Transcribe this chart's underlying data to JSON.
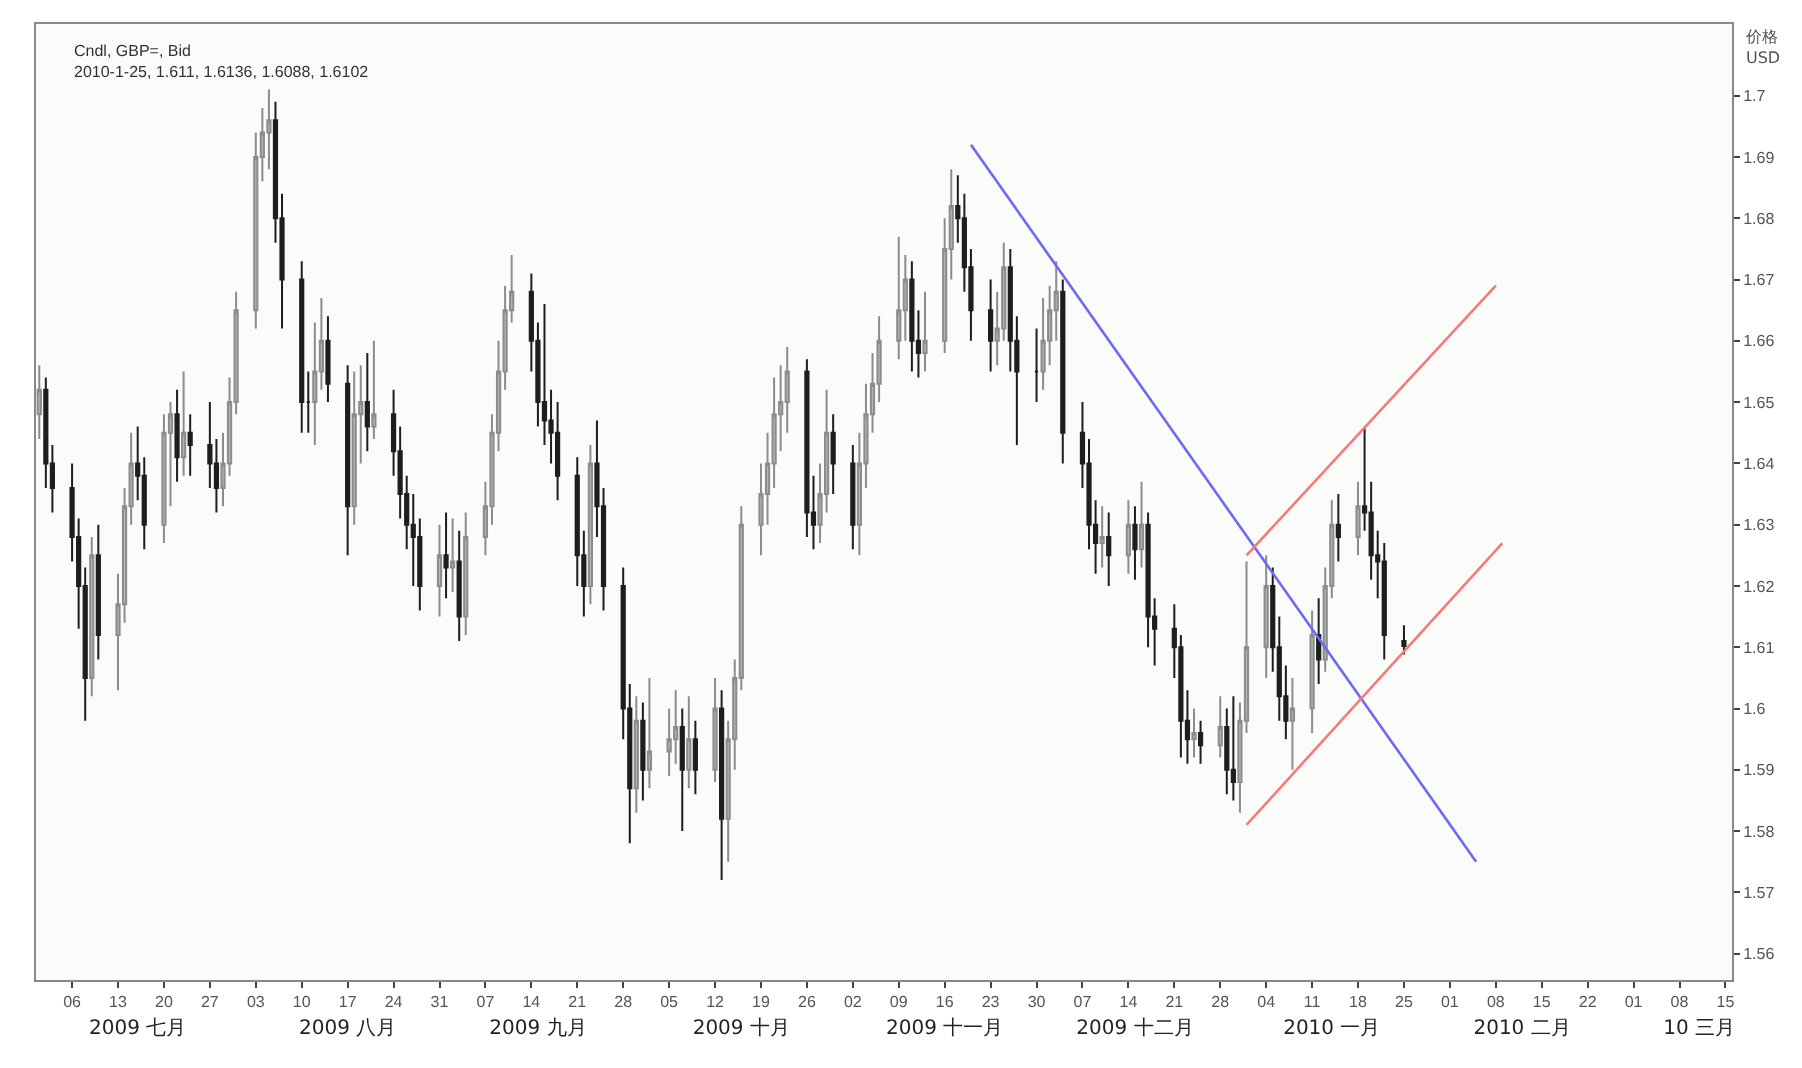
{
  "chart_data": {
    "type": "candlestick",
    "title": "Cndl, GBP=, Bid",
    "subtitle": "2010-1-25, 1.611, 1.6136, 1.6088, 1.6102",
    "ylabel": "价格\nUSD",
    "x": [
      "2009-07-01",
      "2009-07-02",
      "2009-07-03",
      "2009-07-06",
      "2009-07-07",
      "2009-07-08",
      "2009-07-09",
      "2009-07-10",
      "2009-07-13",
      "2009-07-14",
      "2009-07-15",
      "2009-07-16",
      "2009-07-17",
      "2009-07-20",
      "2009-07-21",
      "2009-07-22",
      "2009-07-23",
      "2009-07-24",
      "2009-07-27",
      "2009-07-28",
      "2009-07-29",
      "2009-07-30",
      "2009-07-31",
      "2009-08-03",
      "2009-08-04",
      "2009-08-05",
      "2009-08-06",
      "2009-08-07",
      "2009-08-10",
      "2009-08-11",
      "2009-08-12",
      "2009-08-13",
      "2009-08-14",
      "2009-08-17",
      "2009-08-18",
      "2009-08-19",
      "2009-08-20",
      "2009-08-21",
      "2009-08-24",
      "2009-08-25",
      "2009-08-26",
      "2009-08-27",
      "2009-08-28",
      "2009-08-31",
      "2009-09-01",
      "2009-09-02",
      "2009-09-03",
      "2009-09-04",
      "2009-09-07",
      "2009-09-08",
      "2009-09-09",
      "2009-09-10",
      "2009-09-11",
      "2009-09-14",
      "2009-09-15",
      "2009-09-16",
      "2009-09-17",
      "2009-09-18",
      "2009-09-21",
      "2009-09-22",
      "2009-09-23",
      "2009-09-24",
      "2009-09-25",
      "2009-09-28",
      "2009-09-29",
      "2009-09-30",
      "2009-10-01",
      "2009-10-02",
      "2009-10-05",
      "2009-10-06",
      "2009-10-07",
      "2009-10-08",
      "2009-10-09",
      "2009-10-12",
      "2009-10-13",
      "2009-10-14",
      "2009-10-15",
      "2009-10-16",
      "2009-10-19",
      "2009-10-20",
      "2009-10-21",
      "2009-10-22",
      "2009-10-23",
      "2009-10-26",
      "2009-10-27",
      "2009-10-28",
      "2009-10-29",
      "2009-10-30",
      "2009-11-02",
      "2009-11-03",
      "2009-11-04",
      "2009-11-05",
      "2009-11-06",
      "2009-11-09",
      "2009-11-10",
      "2009-11-11",
      "2009-11-12",
      "2009-11-13",
      "2009-11-16",
      "2009-11-17",
      "2009-11-18",
      "2009-11-19",
      "2009-11-20",
      "2009-11-23",
      "2009-11-24",
      "2009-11-25",
      "2009-11-26",
      "2009-11-27",
      "2009-11-30",
      "2009-12-01",
      "2009-12-02",
      "2009-12-03",
      "2009-12-04",
      "2009-12-07",
      "2009-12-08",
      "2009-12-09",
      "2009-12-10",
      "2009-12-11",
      "2009-12-14",
      "2009-12-15",
      "2009-12-16",
      "2009-12-17",
      "2009-12-18",
      "2009-12-21",
      "2009-12-22",
      "2009-12-23",
      "2009-12-24",
      "2009-12-25",
      "2009-12-28",
      "2009-12-29",
      "2009-12-30",
      "2009-12-31",
      "2010-01-01",
      "2010-01-04",
      "2010-01-05",
      "2010-01-06",
      "2010-01-07",
      "2010-01-08",
      "2010-01-11",
      "2010-01-12",
      "2010-01-13",
      "2010-01-14",
      "2010-01-15",
      "2010-01-18",
      "2010-01-19",
      "2010-01-20",
      "2010-01-21",
      "2010-01-22",
      "2010-01-25"
    ],
    "ohlc": [
      [
        1.648,
        1.656,
        1.644,
        1.652
      ],
      [
        1.652,
        1.654,
        1.636,
        1.64
      ],
      [
        1.64,
        1.643,
        1.632,
        1.636
      ],
      [
        1.636,
        1.64,
        1.624,
        1.628
      ],
      [
        1.628,
        1.631,
        1.613,
        1.62
      ],
      [
        1.62,
        1.623,
        1.598,
        1.605
      ],
      [
        1.605,
        1.628,
        1.602,
        1.625
      ],
      [
        1.625,
        1.63,
        1.608,
        1.612
      ],
      [
        1.612,
        1.622,
        1.603,
        1.617
      ],
      [
        1.617,
        1.636,
        1.614,
        1.633
      ],
      [
        1.633,
        1.645,
        1.63,
        1.64
      ],
      [
        1.64,
        1.646,
        1.634,
        1.638
      ],
      [
        1.638,
        1.641,
        1.626,
        1.63
      ],
      [
        1.63,
        1.648,
        1.627,
        1.645
      ],
      [
        1.645,
        1.65,
        1.633,
        1.648
      ],
      [
        1.648,
        1.652,
        1.637,
        1.641
      ],
      [
        1.641,
        1.655,
        1.638,
        1.645
      ],
      [
        1.645,
        1.648,
        1.638,
        1.643
      ],
      [
        1.643,
        1.65,
        1.636,
        1.64
      ],
      [
        1.64,
        1.644,
        1.632,
        1.636
      ],
      [
        1.636,
        1.645,
        1.633,
        1.64
      ],
      [
        1.64,
        1.654,
        1.638,
        1.65
      ],
      [
        1.65,
        1.668,
        1.648,
        1.665
      ],
      [
        1.665,
        1.694,
        1.662,
        1.69
      ],
      [
        1.69,
        1.698,
        1.686,
        1.694
      ],
      [
        1.694,
        1.701,
        1.688,
        1.696
      ],
      [
        1.696,
        1.699,
        1.676,
        1.68
      ],
      [
        1.68,
        1.684,
        1.662,
        1.67
      ],
      [
        1.67,
        1.673,
        1.645,
        1.65
      ],
      [
        1.65,
        1.655,
        1.645,
        1.65
      ],
      [
        1.65,
        1.663,
        1.643,
        1.655
      ],
      [
        1.655,
        1.667,
        1.652,
        1.66
      ],
      [
        1.66,
        1.664,
        1.65,
        1.653
      ],
      [
        1.653,
        1.656,
        1.625,
        1.633
      ],
      [
        1.633,
        1.655,
        1.63,
        1.648
      ],
      [
        1.648,
        1.656,
        1.64,
        1.65
      ],
      [
        1.65,
        1.658,
        1.642,
        1.646
      ],
      [
        1.646,
        1.66,
        1.644,
        1.648
      ],
      [
        1.648,
        1.652,
        1.638,
        1.642
      ],
      [
        1.642,
        1.646,
        1.631,
        1.635
      ],
      [
        1.635,
        1.638,
        1.626,
        1.63
      ],
      [
        1.63,
        1.635,
        1.62,
        1.628
      ],
      [
        1.628,
        1.631,
        1.616,
        1.62
      ],
      [
        1.62,
        1.63,
        1.615,
        1.625
      ],
      [
        1.625,
        1.632,
        1.618,
        1.623
      ],
      [
        1.623,
        1.631,
        1.619,
        1.624
      ],
      [
        1.624,
        1.629,
        1.611,
        1.615
      ],
      [
        1.615,
        1.632,
        1.612,
        1.628
      ],
      [
        1.628,
        1.637,
        1.625,
        1.633
      ],
      [
        1.633,
        1.648,
        1.63,
        1.645
      ],
      [
        1.645,
        1.66,
        1.642,
        1.655
      ],
      [
        1.655,
        1.669,
        1.652,
        1.665
      ],
      [
        1.665,
        1.674,
        1.663,
        1.668
      ],
      [
        1.668,
        1.671,
        1.655,
        1.66
      ],
      [
        1.66,
        1.663,
        1.646,
        1.65
      ],
      [
        1.65,
        1.666,
        1.643,
        1.647
      ],
      [
        1.647,
        1.652,
        1.64,
        1.645
      ],
      [
        1.645,
        1.65,
        1.634,
        1.638
      ],
      [
        1.638,
        1.641,
        1.62,
        1.625
      ],
      [
        1.625,
        1.629,
        1.615,
        1.62
      ],
      [
        1.62,
        1.643,
        1.617,
        1.64
      ],
      [
        1.64,
        1.647,
        1.628,
        1.633
      ],
      [
        1.633,
        1.636,
        1.616,
        1.62
      ],
      [
        1.62,
        1.623,
        1.595,
        1.6
      ],
      [
        1.6,
        1.604,
        1.578,
        1.587
      ],
      [
        1.587,
        1.602,
        1.583,
        1.598
      ],
      [
        1.598,
        1.601,
        1.585,
        1.59
      ],
      [
        1.59,
        1.605,
        1.587,
        1.593
      ],
      [
        1.593,
        1.6,
        1.589,
        1.595
      ],
      [
        1.595,
        1.603,
        1.591,
        1.597
      ],
      [
        1.597,
        1.6,
        1.58,
        1.59
      ],
      [
        1.59,
        1.602,
        1.587,
        1.595
      ],
      [
        1.595,
        1.598,
        1.586,
        1.59
      ],
      [
        1.59,
        1.605,
        1.588,
        1.6
      ],
      [
        1.6,
        1.603,
        1.572,
        1.582
      ],
      [
        1.582,
        1.598,
        1.575,
        1.595
      ],
      [
        1.595,
        1.608,
        1.59,
        1.605
      ],
      [
        1.605,
        1.633,
        1.603,
        1.63
      ],
      [
        1.63,
        1.64,
        1.625,
        1.635
      ],
      [
        1.635,
        1.645,
        1.63,
        1.64
      ],
      [
        1.64,
        1.654,
        1.636,
        1.648
      ],
      [
        1.648,
        1.656,
        1.642,
        1.65
      ],
      [
        1.65,
        1.659,
        1.645,
        1.655
      ],
      [
        1.655,
        1.657,
        1.628,
        1.632
      ],
      [
        1.632,
        1.638,
        1.626,
        1.63
      ],
      [
        1.63,
        1.64,
        1.627,
        1.635
      ],
      [
        1.635,
        1.652,
        1.632,
        1.645
      ],
      [
        1.645,
        1.648,
        1.635,
        1.64
      ],
      [
        1.64,
        1.643,
        1.626,
        1.63
      ],
      [
        1.63,
        1.645,
        1.625,
        1.64
      ],
      [
        1.64,
        1.653,
        1.636,
        1.648
      ],
      [
        1.648,
        1.658,
        1.645,
        1.653
      ],
      [
        1.653,
        1.664,
        1.65,
        1.66
      ],
      [
        1.66,
        1.677,
        1.657,
        1.665
      ],
      [
        1.665,
        1.674,
        1.66,
        1.67
      ],
      [
        1.67,
        1.673,
        1.655,
        1.66
      ],
      [
        1.66,
        1.665,
        1.654,
        1.658
      ],
      [
        1.658,
        1.668,
        1.655,
        1.66
      ],
      [
        1.66,
        1.68,
        1.658,
        1.675
      ],
      [
        1.675,
        1.688,
        1.67,
        1.682
      ],
      [
        1.682,
        1.687,
        1.676,
        1.68
      ],
      [
        1.68,
        1.684,
        1.668,
        1.672
      ],
      [
        1.672,
        1.675,
        1.66,
        1.665
      ],
      [
        1.665,
        1.67,
        1.655,
        1.66
      ],
      [
        1.66,
        1.668,
        1.656,
        1.662
      ],
      [
        1.662,
        1.676,
        1.66,
        1.672
      ],
      [
        1.672,
        1.675,
        1.655,
        1.66
      ],
      [
        1.66,
        1.664,
        1.643,
        1.655
      ],
      [
        1.655,
        1.662,
        1.65,
        1.655
      ],
      [
        1.655,
        1.667,
        1.652,
        1.66
      ],
      [
        1.66,
        1.669,
        1.656,
        1.665
      ],
      [
        1.665,
        1.673,
        1.66,
        1.668
      ],
      [
        1.668,
        1.67,
        1.64,
        1.645
      ],
      [
        1.645,
        1.65,
        1.636,
        1.64
      ],
      [
        1.64,
        1.644,
        1.626,
        1.63
      ],
      [
        1.63,
        1.634,
        1.622,
        1.627
      ],
      [
        1.627,
        1.633,
        1.623,
        1.628
      ],
      [
        1.628,
        1.632,
        1.62,
        1.625
      ],
      [
        1.625,
        1.634,
        1.622,
        1.63
      ],
      [
        1.63,
        1.633,
        1.621,
        1.626
      ],
      [
        1.626,
        1.637,
        1.623,
        1.63
      ],
      [
        1.63,
        1.632,
        1.61,
        1.615
      ],
      [
        1.615,
        1.618,
        1.607,
        1.613
      ],
      [
        1.613,
        1.617,
        1.605,
        1.61
      ],
      [
        1.61,
        1.612,
        1.592,
        1.598
      ],
      [
        1.598,
        1.603,
        1.591,
        1.595
      ],
      [
        1.595,
        1.6,
        1.592,
        1.596
      ],
      [
        1.596,
        1.598,
        1.591,
        1.594
      ],
      [
        1.594,
        1.602,
        1.592,
        1.597
      ],
      [
        1.597,
        1.6,
        1.586,
        1.59
      ],
      [
        1.59,
        1.602,
        1.585,
        1.588
      ],
      [
        1.588,
        1.601,
        1.583,
        1.598
      ],
      [
        1.598,
        1.624,
        1.596,
        1.61
      ],
      [
        1.61,
        1.625,
        1.605,
        1.62
      ],
      [
        1.62,
        1.623,
        1.606,
        1.61
      ],
      [
        1.61,
        1.615,
        1.598,
        1.602
      ],
      [
        1.602,
        1.607,
        1.595,
        1.598
      ],
      [
        1.598,
        1.605,
        1.59,
        1.6
      ],
      [
        1.6,
        1.616,
        1.596,
        1.612
      ],
      [
        1.612,
        1.618,
        1.604,
        1.608
      ],
      [
        1.608,
        1.623,
        1.606,
        1.62
      ],
      [
        1.62,
        1.634,
        1.618,
        1.63
      ],
      [
        1.63,
        1.635,
        1.624,
        1.628
      ],
      [
        1.628,
        1.637,
        1.625,
        1.633
      ],
      [
        1.633,
        1.646,
        1.629,
        1.632
      ],
      [
        1.632,
        1.637,
        1.621,
        1.625
      ],
      [
        1.625,
        1.629,
        1.618,
        1.624
      ],
      [
        1.624,
        1.627,
        1.608,
        1.612
      ],
      [
        1.611,
        1.6136,
        1.6088,
        1.6102
      ]
    ],
    "series": [
      {
        "type": "line",
        "color": "#6a6af5",
        "x": [
          "2009-11-20",
          "2010-02-05"
        ],
        "values": [
          1.692,
          1.575
        ]
      },
      {
        "type": "line",
        "color": "#f57a7a",
        "x": [
          "2010-01-01",
          "2010-02-08"
        ],
        "values": [
          1.625,
          1.669
        ]
      },
      {
        "type": "line",
        "color": "#f57a7a",
        "x": [
          "2010-01-01",
          "2010-02-09"
        ],
        "values": [
          1.581,
          1.627
        ]
      }
    ],
    "xlim": [
      "2009-06-30T12:00",
      "2010-03-16"
    ],
    "xticks": [
      {
        "value": "2009-07-06",
        "label": "06"
      },
      {
        "value": "2009-07-13",
        "label": "13"
      },
      {
        "value": "2009-07-20",
        "label": "20"
      },
      {
        "value": "2009-07-27",
        "label": "27"
      },
      {
        "value": "2009-08-03",
        "label": "03"
      },
      {
        "value": "2009-08-10",
        "label": "10"
      },
      {
        "value": "2009-08-17",
        "label": "17"
      },
      {
        "value": "2009-08-24",
        "label": "24"
      },
      {
        "value": "2009-08-31",
        "label": "31"
      },
      {
        "value": "2009-09-07",
        "label": "07"
      },
      {
        "value": "2009-09-14",
        "label": "14"
      },
      {
        "value": "2009-09-21",
        "label": "21"
      },
      {
        "value": "2009-09-28",
        "label": "28"
      },
      {
        "value": "2009-10-05",
        "label": "05"
      },
      {
        "value": "2009-10-12",
        "label": "12"
      },
      {
        "value": "2009-10-19",
        "label": "19"
      },
      {
        "value": "2009-10-26",
        "label": "26"
      },
      {
        "value": "2009-11-02",
        "label": "02"
      },
      {
        "value": "2009-11-09",
        "label": "09"
      },
      {
        "value": "2009-11-16",
        "label": "16"
      },
      {
        "value": "2009-11-23",
        "label": "23"
      },
      {
        "value": "2009-11-30",
        "label": "30"
      },
      {
        "value": "2009-12-07",
        "label": "07"
      },
      {
        "value": "2009-12-14",
        "label": "14"
      },
      {
        "value": "2009-12-21",
        "label": "21"
      },
      {
        "value": "2009-12-28",
        "label": "28"
      },
      {
        "value": "2010-01-04",
        "label": "04"
      },
      {
        "value": "2010-01-11",
        "label": "11"
      },
      {
        "value": "2010-01-18",
        "label": "18"
      },
      {
        "value": "2010-01-25",
        "label": "25"
      },
      {
        "value": "2010-02-01",
        "label": "01"
      },
      {
        "value": "2010-02-08",
        "label": "08"
      },
      {
        "value": "2010-02-15",
        "label": "15"
      },
      {
        "value": "2010-02-22",
        "label": "22"
      },
      {
        "value": "2010-03-01",
        "label": "01"
      },
      {
        "value": "2010-03-08",
        "label": "08"
      },
      {
        "value": "2010-03-15",
        "label": "15"
      }
    ],
    "x2lim": [
      "2009-06-30T12:00",
      "2010-03-16"
    ],
    "x2ticks": [
      {
        "value": "2009-07-16",
        "label": "2009 七月"
      },
      {
        "value": "2009-08-17",
        "label": "2009 八月"
      },
      {
        "value": "2009-09-15",
        "label": "2009 九月"
      },
      {
        "value": "2009-10-16",
        "label": "2009 十月"
      },
      {
        "value": "2009-11-16",
        "label": "2009 十一月"
      },
      {
        "value": "2009-12-15",
        "label": "2009 十二月"
      },
      {
        "value": "2010-01-14",
        "label": "2010 一月"
      },
      {
        "value": "2010-02-12",
        "label": "2010 二月"
      },
      {
        "value": "2010-03-11",
        "label": "10 三月"
      }
    ],
    "ylim": [
      1.5557,
      1.7117
    ],
    "yticks": [
      1.56,
      1.57,
      1.58,
      1.59,
      1.6,
      1.61,
      1.62,
      1.63,
      1.64,
      1.65,
      1.66,
      1.67,
      1.68,
      1.69,
      1.7
    ]
  }
}
